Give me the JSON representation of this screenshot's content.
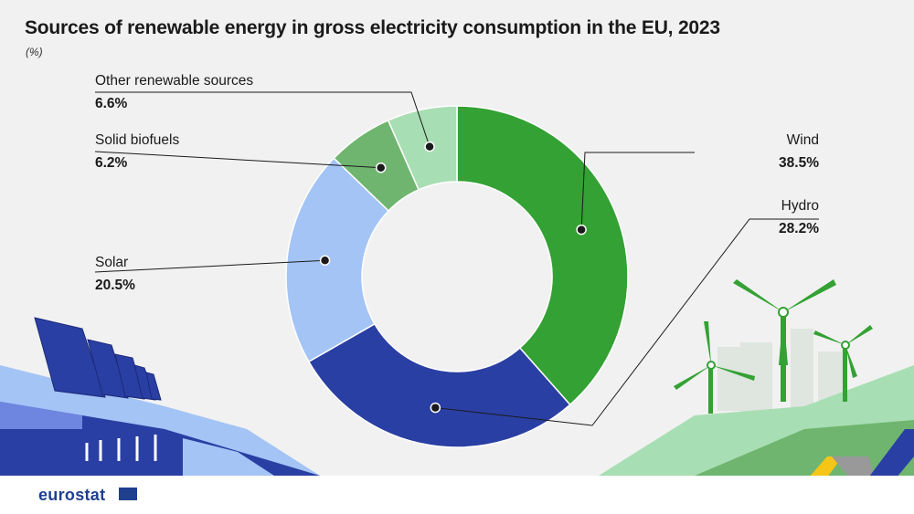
{
  "title": "Sources of renewable energy in gross electricity consumption in the EU, 2023",
  "subtitle": "(%)",
  "logo": "eurostat",
  "chart_data": {
    "type": "pie",
    "donut": true,
    "title": "Sources of renewable energy in gross electricity consumption in the EU, 2023",
    "unit": "%",
    "series": [
      {
        "name": "Wind",
        "value": 38.5,
        "value_label": "38.5%",
        "color": "#33a133"
      },
      {
        "name": "Hydro",
        "value": 28.2,
        "value_label": "28.2%",
        "color": "#2a3fa3"
      },
      {
        "name": "Solar",
        "value": 20.5,
        "value_label": "20.5%",
        "color": "#a3c4f5"
      },
      {
        "name": "Solid biofuels",
        "value": 6.2,
        "value_label": "6.2%",
        "color": "#6fb56f"
      },
      {
        "name": "Other renewable sources",
        "value": 6.6,
        "value_label": "6.6%",
        "color": "#a8deb3"
      }
    ]
  }
}
